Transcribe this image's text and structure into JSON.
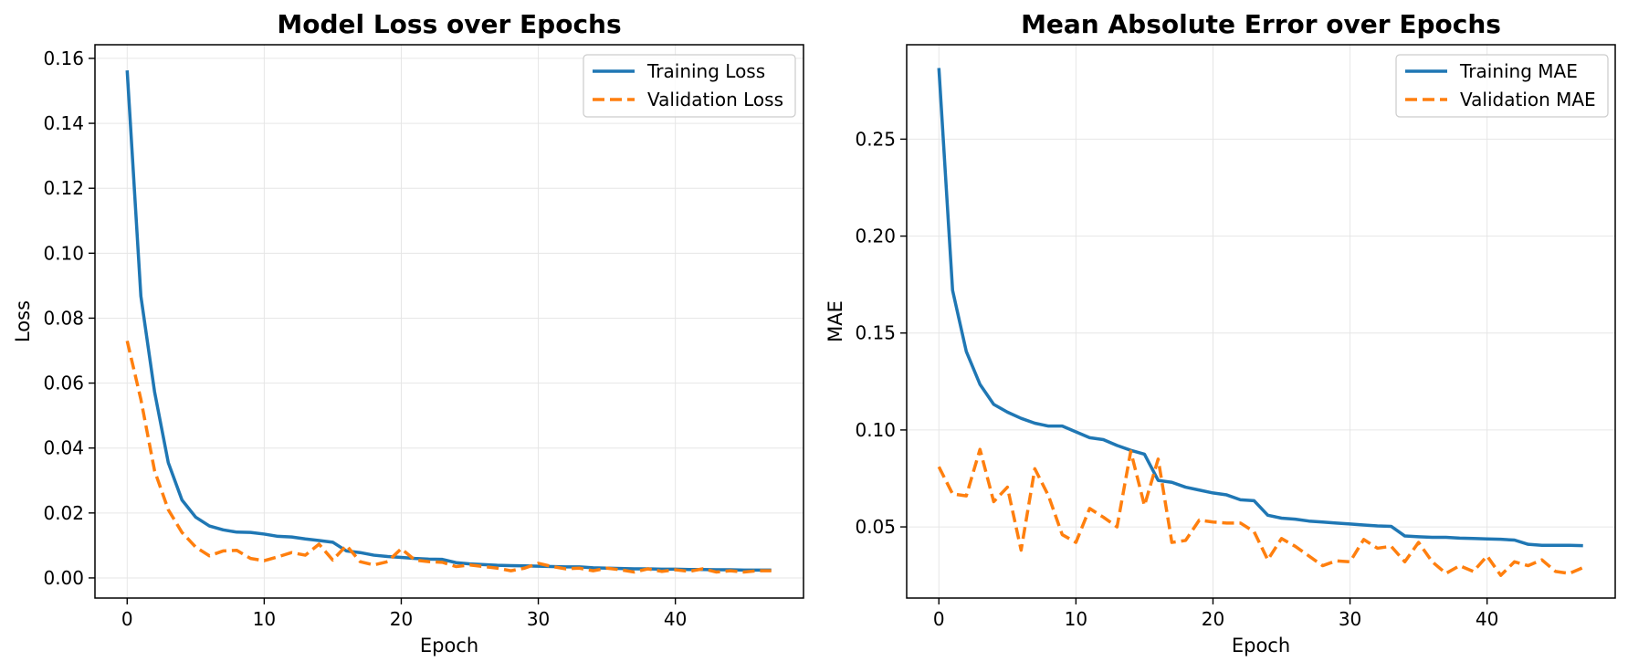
{
  "colors": {
    "training": "#1f77b4",
    "validation": "#ff7f0e",
    "grid": "#e6e6e6",
    "axes": "#000000"
  },
  "chart_data": [
    {
      "type": "line",
      "title": "Model Loss over Epochs",
      "xlabel": "Epoch",
      "ylabel": "Loss",
      "xlim": [
        -2.35,
        49.35
      ],
      "ylim": [
        -0.0062,
        0.1642
      ],
      "xticks": [
        0,
        10,
        20,
        30,
        40
      ],
      "yticks": [
        0.0,
        0.02,
        0.04,
        0.06,
        0.08,
        0.1,
        0.12,
        0.14,
        0.16
      ],
      "ytick_labels": [
        "0.00",
        "0.02",
        "0.04",
        "0.06",
        "0.08",
        "0.10",
        "0.12",
        "0.14",
        "0.16"
      ],
      "grid": true,
      "legend": "top-right",
      "x": [
        0,
        1,
        2,
        3,
        4,
        5,
        6,
        7,
        8,
        9,
        10,
        11,
        12,
        13,
        14,
        15,
        16,
        17,
        18,
        19,
        20,
        21,
        22,
        23,
        24,
        25,
        26,
        27,
        28,
        29,
        30,
        31,
        32,
        33,
        34,
        35,
        36,
        37,
        38,
        39,
        40,
        41,
        42,
        43,
        44,
        45,
        46,
        47
      ],
      "series": [
        {
          "name": "Training Loss",
          "style": "solid",
          "color": "#1f77b4",
          "values": [
            0.1563,
            0.0868,
            0.0573,
            0.0355,
            0.024,
            0.0187,
            0.016,
            0.0148,
            0.0141,
            0.014,
            0.0135,
            0.0128,
            0.0126,
            0.012,
            0.0115,
            0.011,
            0.0083,
            0.0078,
            0.007,
            0.0066,
            0.0063,
            0.006,
            0.0058,
            0.0057,
            0.0047,
            0.0043,
            0.0041,
            0.0039,
            0.0038,
            0.0037,
            0.0036,
            0.0035,
            0.0034,
            0.0034,
            0.0031,
            0.003,
            0.0029,
            0.0028,
            0.0028,
            0.0027,
            0.0027,
            0.0026,
            0.0026,
            0.0025,
            0.0025,
            0.0024,
            0.0024,
            0.0024
          ]
        },
        {
          "name": "Validation Loss",
          "style": "dashed",
          "color": "#ff7f0e",
          "values": [
            0.073,
            0.055,
            0.033,
            0.021,
            0.014,
            0.0095,
            0.0068,
            0.0083,
            0.0085,
            0.006,
            0.0053,
            0.0065,
            0.0078,
            0.007,
            0.0104,
            0.0055,
            0.01,
            0.005,
            0.004,
            0.005,
            0.009,
            0.0055,
            0.005,
            0.0048,
            0.0035,
            0.004,
            0.0035,
            0.003,
            0.0022,
            0.003,
            0.0045,
            0.0035,
            0.0028,
            0.003,
            0.0022,
            0.003,
            0.0025,
            0.0018,
            0.0028,
            0.002,
            0.0025,
            0.002,
            0.0028,
            0.0018,
            0.0022,
            0.0018,
            0.0022,
            0.0022
          ]
        }
      ]
    },
    {
      "type": "line",
      "title": "Mean Absolute Error over Epochs",
      "xlabel": "Epoch",
      "ylabel": "MAE",
      "xlim": [
        -2.35,
        49.35
      ],
      "ylim": [
        0.0133,
        0.2987
      ],
      "xticks": [
        0,
        10,
        20,
        30,
        40
      ],
      "yticks": [
        0.05,
        0.1,
        0.15,
        0.2,
        0.25
      ],
      "ytick_labels": [
        "0.05",
        "0.10",
        "0.15",
        "0.20",
        "0.25"
      ],
      "grid": true,
      "legend": "top-right",
      "x": [
        0,
        1,
        2,
        3,
        4,
        5,
        6,
        7,
        8,
        9,
        10,
        11,
        12,
        13,
        14,
        15,
        16,
        17,
        18,
        19,
        20,
        21,
        22,
        23,
        24,
        25,
        26,
        27,
        28,
        29,
        30,
        31,
        32,
        33,
        34,
        35,
        36,
        37,
        38,
        39,
        40,
        41,
        42,
        43,
        44,
        45,
        46,
        47
      ],
      "series": [
        {
          "name": "Training MAE",
          "style": "solid",
          "color": "#1f77b4",
          "values": [
            0.2867,
            0.172,
            0.1405,
            0.1235,
            0.1132,
            0.1092,
            0.106,
            0.1035,
            0.102,
            0.102,
            0.099,
            0.096,
            0.095,
            0.092,
            0.0895,
            0.0875,
            0.074,
            0.073,
            0.0705,
            0.069,
            0.0675,
            0.0665,
            0.064,
            0.0635,
            0.056,
            0.0545,
            0.054,
            0.053,
            0.0525,
            0.052,
            0.0515,
            0.051,
            0.0505,
            0.0503,
            0.0453,
            0.0449,
            0.0446,
            0.0446,
            0.0442,
            0.044,
            0.0438,
            0.0436,
            0.0432,
            0.041,
            0.0405,
            0.0405,
            0.0405,
            0.0403
          ]
        },
        {
          "name": "Validation MAE",
          "style": "dashed",
          "color": "#ff7f0e",
          "values": [
            0.081,
            0.067,
            0.066,
            0.09,
            0.063,
            0.0705,
            0.038,
            0.08,
            0.066,
            0.046,
            0.042,
            0.0595,
            0.055,
            0.05,
            0.089,
            0.061,
            0.085,
            0.042,
            0.043,
            0.0535,
            0.0525,
            0.052,
            0.052,
            0.0475,
            0.033,
            0.044,
            0.04,
            0.035,
            0.03,
            0.0325,
            0.032,
            0.0435,
            0.039,
            0.04,
            0.032,
            0.042,
            0.032,
            0.026,
            0.03,
            0.027,
            0.035,
            0.025,
            0.032,
            0.03,
            0.033,
            0.027,
            0.026,
            0.029
          ]
        }
      ]
    }
  ]
}
